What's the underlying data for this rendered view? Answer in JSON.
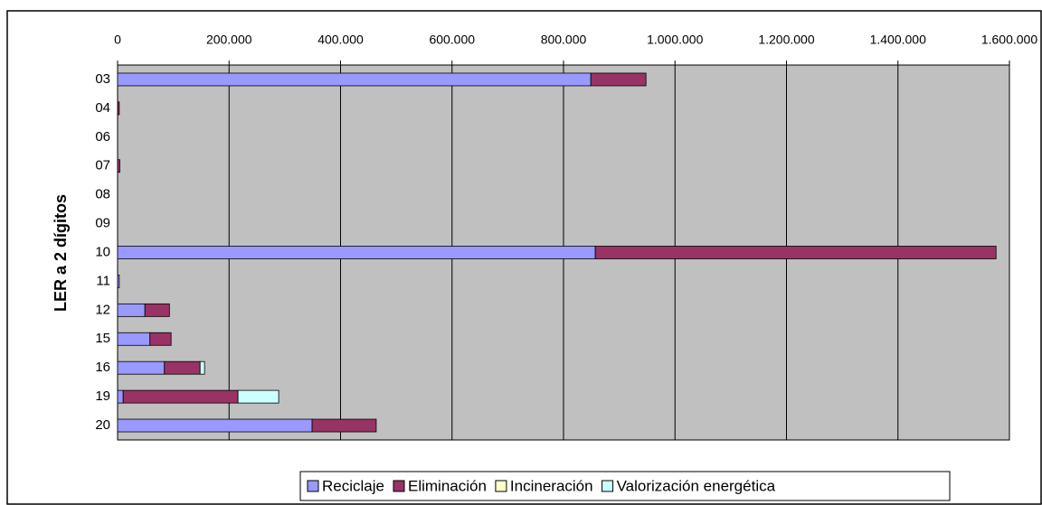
{
  "chart_data": {
    "type": "stacked_barh",
    "y_label": "LER a 2 dígitos",
    "categories": [
      "03",
      "04",
      "06",
      "07",
      "08",
      "09",
      "10",
      "11",
      "12",
      "15",
      "16",
      "19",
      "20"
    ],
    "series": [
      {
        "name": "Reciclaje",
        "color": "#9999ff",
        "values": [
          849000,
          0,
          0,
          0,
          0,
          0,
          857000,
          3000,
          49000,
          58000,
          84000,
          10000,
          349000
        ]
      },
      {
        "name": "Eliminación",
        "color": "#993366",
        "values": [
          99000,
          3000,
          0,
          4000,
          0,
          0,
          719000,
          0,
          44000,
          38000,
          64000,
          206000,
          115000
        ]
      },
      {
        "name": "Incineración",
        "color": "#ffffcc",
        "values": [
          0,
          0,
          0,
          0,
          0,
          0,
          0,
          0,
          0,
          0,
          0,
          0,
          0
        ]
      },
      {
        "name": "Valorización energética",
        "color": "#ccffff",
        "values": [
          0,
          0,
          0,
          0,
          0,
          0,
          0,
          0,
          0,
          0,
          8000,
          73000,
          0
        ]
      }
    ],
    "xlim": [
      0,
      1600000
    ],
    "xticks": [
      0,
      {
        "value": 200000,
        "label": "200.000"
      },
      {
        "value": 400000,
        "label": "400.000"
      },
      {
        "value": 600000,
        "label": "600.000"
      },
      {
        "value": 800000,
        "label": "800.000"
      },
      {
        "value": 1000000,
        "label": "1.000.000"
      },
      {
        "value": 1200000,
        "label": "1.200.000"
      },
      {
        "value": 1400000,
        "label": "1.400.000"
      },
      {
        "value": 1600000,
        "label": "1.600.000"
      }
    ],
    "grid": true,
    "legend": "bottom",
    "plot_background": "#c0c0c0"
  }
}
